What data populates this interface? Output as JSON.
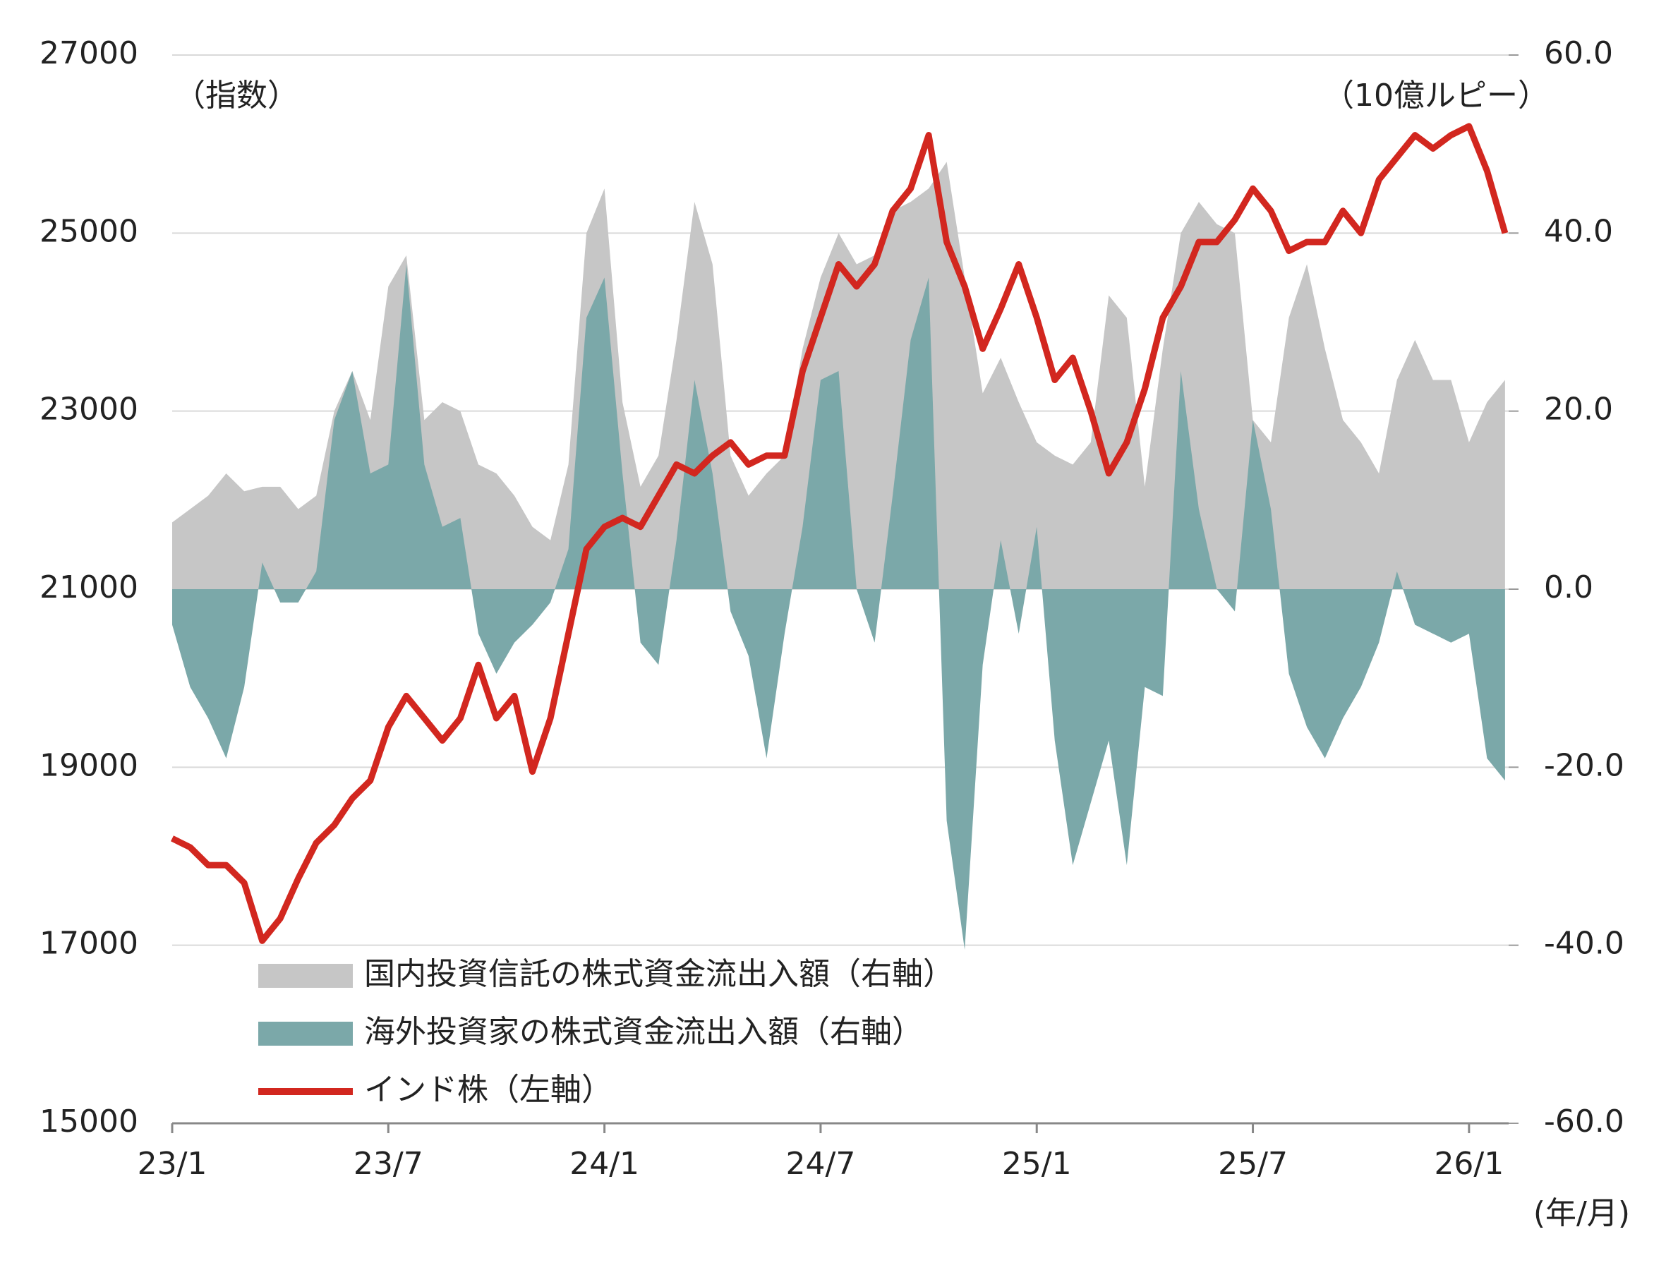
{
  "chart_data": {
    "type": "combo",
    "y_unit_label": "（指数）",
    "y2_unit_label": "（10億ルピー）",
    "x_unit_label": "(年/月)",
    "x": [
      0,
      0.5,
      1,
      1.5,
      2,
      2.5,
      3,
      3.5,
      4,
      4.5,
      5,
      5.5,
      6,
      6.5,
      7,
      7.5,
      8,
      8.5,
      9,
      9.5,
      10,
      10.5,
      11,
      11.5,
      12,
      12.5,
      13,
      13.5,
      14,
      14.5,
      15,
      15.5,
      16,
      16.5,
      17,
      17.5,
      18,
      18.5,
      19,
      19.5,
      20,
      20.5,
      21,
      21.5,
      22,
      22.5,
      23,
      23.5,
      24,
      24.5,
      25,
      25.5,
      26,
      26.5,
      27,
      27.5,
      28,
      28.5,
      29,
      29.5,
      30,
      30.5,
      31,
      31.5,
      32,
      32.5,
      33,
      33.5,
      34,
      34.5,
      35,
      35.5,
      36,
      36.5,
      37
    ],
    "xlim": [
      0,
      37.1
    ],
    "xticks": [
      {
        "value": 0,
        "label": "23/1"
      },
      {
        "value": 6,
        "label": "23/7"
      },
      {
        "value": 12,
        "label": "24/1"
      },
      {
        "value": 18,
        "label": "24/7"
      },
      {
        "value": 24,
        "label": "25/1"
      },
      {
        "value": 30,
        "label": "25/7"
      },
      {
        "value": 36,
        "label": "26/1"
      }
    ],
    "ylim": [
      15000,
      27000
    ],
    "yticks": [
      15000,
      17000,
      19000,
      21000,
      23000,
      25000,
      27000
    ],
    "y2lim": [
      -60,
      60
    ],
    "y2ticks": [
      {
        "value": -60,
        "label": "-60.0"
      },
      {
        "value": -40,
        "label": "-40.0"
      },
      {
        "value": -20,
        "label": "-20.0"
      },
      {
        "value": 0,
        "label": "0.0"
      },
      {
        "value": 20,
        "label": "20.0"
      },
      {
        "value": 40,
        "label": "40.0"
      },
      {
        "value": 60,
        "label": "60.0"
      }
    ],
    "grid": true,
    "series": [
      {
        "name": "国内投資信託の株式資金流出入額（右軸）",
        "type": "area",
        "axis": "y2",
        "color": "#c6c6c6",
        "values": [
          7.5,
          9,
          10.5,
          13,
          11,
          11.5,
          11.5,
          9,
          10.5,
          20,
          24.5,
          19,
          34,
          37.5,
          19,
          21,
          20,
          14,
          13,
          10.5,
          7,
          5.5,
          14,
          40,
          45,
          21,
          11.5,
          15,
          28,
          43.5,
          36.5,
          15,
          10.5,
          13,
          15,
          27,
          35,
          40,
          36.5,
          37.5,
          42.5,
          43.5,
          45,
          48,
          35,
          22,
          26,
          21,
          16.5,
          15,
          14,
          16.5,
          33,
          30.5,
          11.5,
          27,
          40,
          43.5,
          41,
          40,
          19,
          16.5,
          30.5,
          36.5,
          27,
          19,
          16.5,
          13,
          23.5,
          28,
          23.5,
          23.5,
          16.5,
          21,
          23.5
        ]
      },
      {
        "name": "海外投資家の株式資金流出入額（右軸）",
        "type": "area",
        "axis": "y2",
        "color": "#7ba8a9",
        "values": [
          -4,
          -11,
          -14.5,
          -19,
          -11,
          3,
          -1.5,
          -1.5,
          2,
          19,
          24.5,
          13,
          14,
          36.5,
          14,
          7,
          8,
          -5,
          -9.5,
          -6,
          -4,
          -1.5,
          4.5,
          30.5,
          35,
          13,
          -6,
          -8.5,
          5.5,
          23.5,
          13,
          -2.5,
          -7.5,
          -19,
          -5,
          7,
          23.5,
          24.5,
          0,
          -6,
          10.5,
          28,
          35,
          -26,
          -40.5,
          -8.5,
          5.5,
          -5,
          7,
          -17,
          -31,
          -24,
          -17,
          -31,
          -11,
          -12,
          24.5,
          9,
          0,
          -2.5,
          19,
          9,
          -9.5,
          -15.5,
          -19,
          -14.5,
          -11,
          -6,
          2,
          -4,
          -5,
          -6,
          -5,
          -19,
          -21.5
        ]
      },
      {
        "name": "インド株（左軸）",
        "type": "line",
        "axis": "y",
        "color": "#d2271f",
        "values": [
          18200,
          18100,
          17900,
          17900,
          17700,
          17050,
          17300,
          17750,
          18150,
          18350,
          18650,
          18850,
          19450,
          19800,
          19550,
          19300,
          19550,
          20150,
          19550,
          19800,
          18950,
          19550,
          20500,
          21450,
          21700,
          21800,
          21700,
          22050,
          22400,
          22300,
          22500,
          22650,
          22400,
          22500,
          22500,
          23450,
          24050,
          24650,
          24400,
          24650,
          25250,
          25500,
          26100,
          24900,
          24400,
          23700,
          24150,
          24650,
          24050,
          23350,
          23600,
          23000,
          22300,
          22650,
          23250,
          24050,
          24400,
          24900,
          24900,
          25150,
          25500,
          25250,
          24800,
          24900,
          24900,
          25250,
          25000,
          25600,
          25850,
          26100,
          25950,
          26100,
          26200,
          25700,
          25000
        ]
      }
    ]
  }
}
